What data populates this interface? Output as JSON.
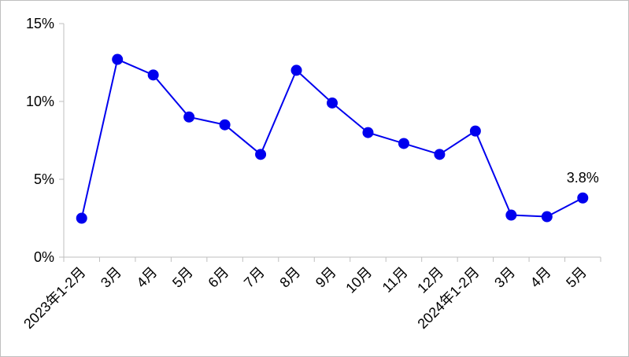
{
  "chart_data": {
    "type": "line",
    "categories": [
      "2023年1-2月",
      "3月",
      "4月",
      "5月",
      "6月",
      "7月",
      "8月",
      "9月",
      "10月",
      "11月",
      "12月",
      "2024年1-2月",
      "3月",
      "4月",
      "5月"
    ],
    "series": [
      {
        "color": "#0000ee",
        "values": [
          2.5,
          12.7,
          11.7,
          9.0,
          8.5,
          6.6,
          12.0,
          9.9,
          8.0,
          7.3,
          6.6,
          8.1,
          2.7,
          2.6,
          3.8
        ],
        "value_labels": [
          null,
          null,
          null,
          null,
          null,
          null,
          null,
          null,
          null,
          null,
          null,
          null,
          null,
          null,
          "3.8%"
        ]
      }
    ],
    "ylim": [
      0,
      15
    ],
    "yticks": [
      {
        "value": 0,
        "label": "0%"
      },
      {
        "value": 5,
        "label": "5%"
      },
      {
        "value": 10,
        "label": "10%"
      },
      {
        "value": 15,
        "label": "15%"
      }
    ],
    "grid": false
  }
}
